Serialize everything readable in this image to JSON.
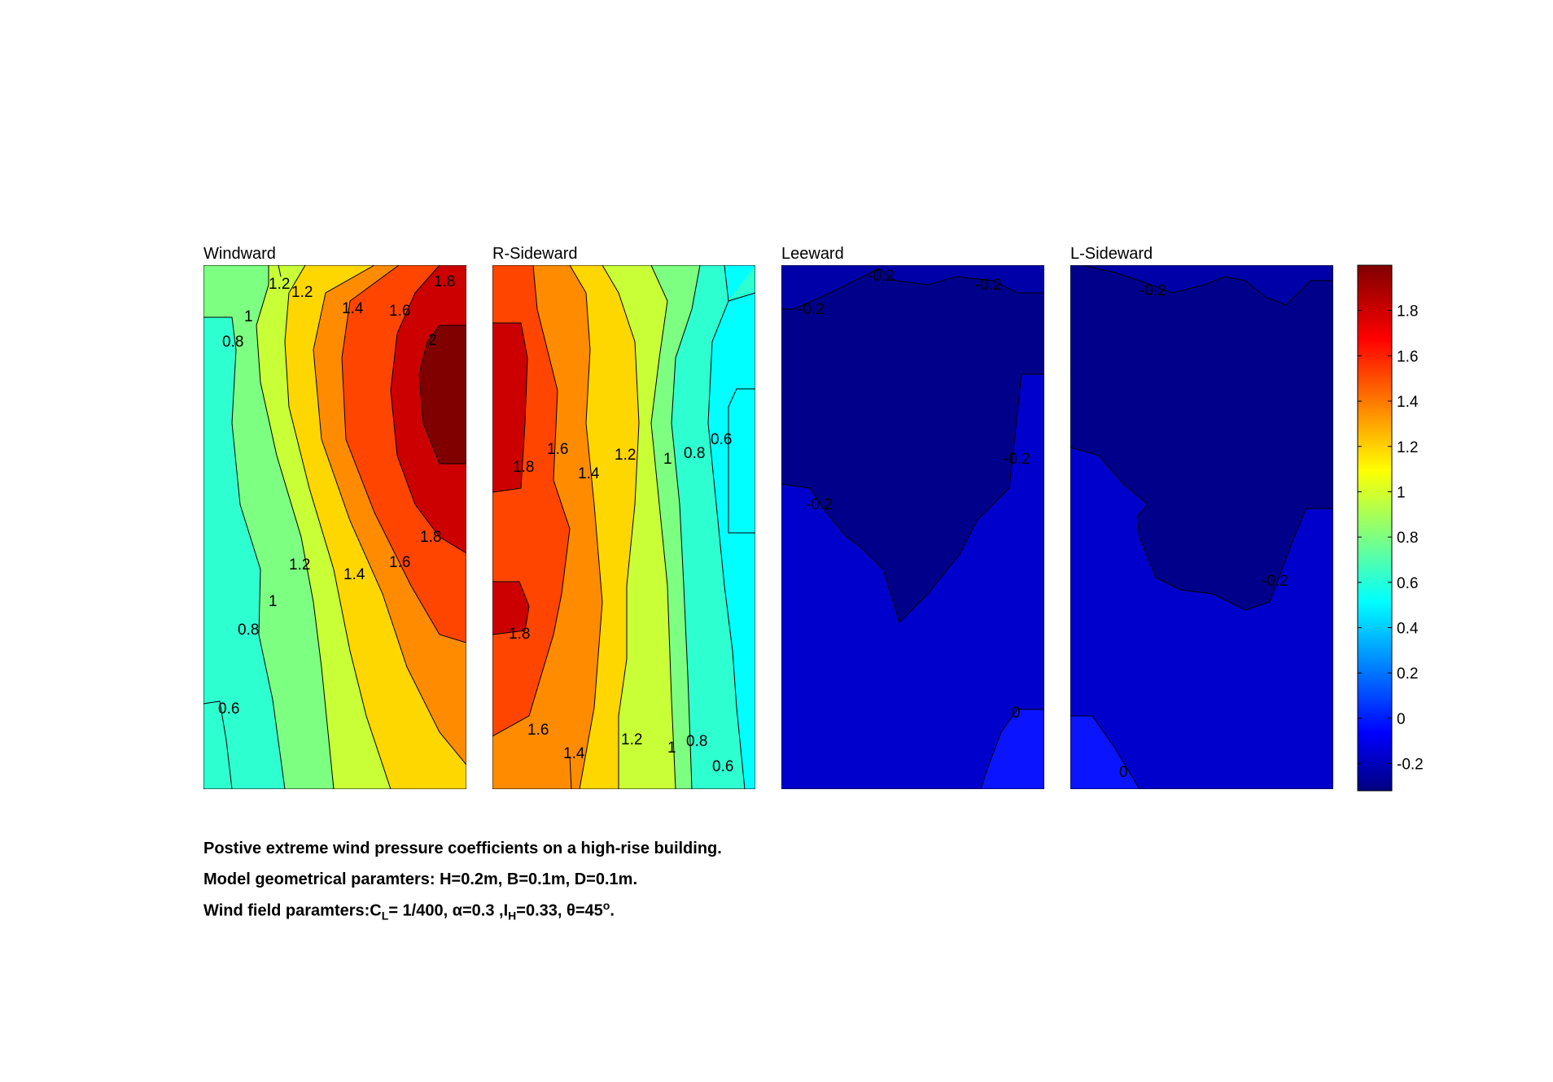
{
  "chart_data": {
    "type": "heatmap",
    "panels": [
      {
        "title": "Windward",
        "contour_labels": [
          "1.2",
          "1.2",
          "1.8",
          "1",
          "1.4",
          "1.6",
          "0.8",
          "2",
          "1.8",
          "1.2",
          "1.4",
          "1.6",
          "1",
          "0.8",
          "0.6"
        ]
      },
      {
        "title": "R-Sideward",
        "contour_labels": [
          "1.6",
          "1.8",
          "1.4",
          "1.2",
          "1",
          "0.8",
          "0.6",
          "1.8",
          "1.6",
          "1.4",
          "1.2",
          "1",
          "0.8",
          "0.6"
        ]
      },
      {
        "title": "Leeward",
        "contour_labels": [
          "-0.2",
          "-0.2",
          "-0.2",
          "-0.2",
          "-0.2",
          "0"
        ]
      },
      {
        "title": "L-Sideward",
        "contour_labels": [
          "-0.2",
          "-0.2",
          "0"
        ]
      }
    ],
    "colorbar": {
      "ticks": [
        "1.8",
        "1.6",
        "1.4",
        "1.2",
        "1",
        "0.8",
        "0.6",
        "0.4",
        "0.2",
        "0",
        "-0.2"
      ],
      "range": [
        -0.32,
        2.0
      ],
      "colormap": "jet"
    }
  },
  "caption": {
    "line1": "Postive extreme  wind pressure coefficients on a high-rise building.",
    "line2": "Model geometrical paramters: H=0.2m, B=0.1m, D=0.1m.",
    "line3_prefix": "Wind field paramters:C",
    "line3_cl_sub": "L",
    "line3_mid": "= 1/400, α=0.3 ,I",
    "line3_ih_sub": "H",
    "line3_end": "=0.33, θ=45",
    "line3_deg_sup": "o",
    "line3_tail": "."
  }
}
